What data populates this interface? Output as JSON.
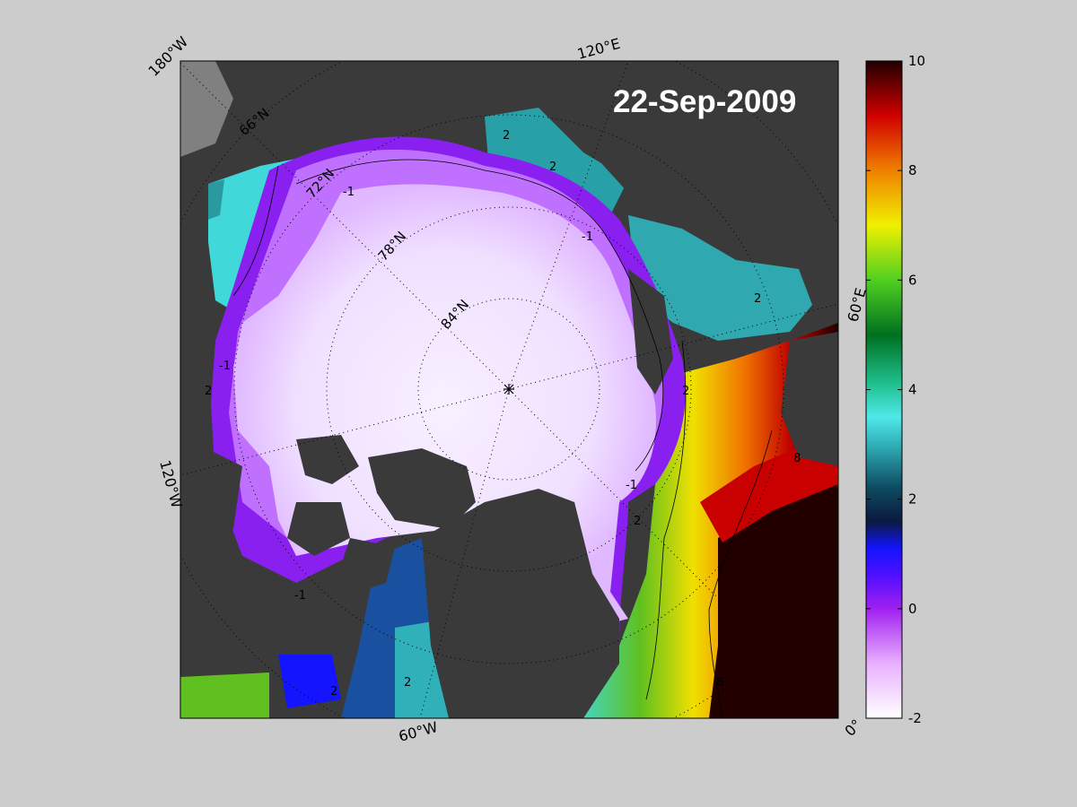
{
  "map": {
    "date_label": "22-Sep-2009",
    "longitude_labels": [
      "180°W",
      "120°E",
      "60°E",
      "0°",
      "60°W",
      "120°W"
    ],
    "latitude_labels": [
      "66°N",
      "72°N",
      "78°N",
      "84°N"
    ],
    "contour_labels": [
      "-1",
      "2",
      "8"
    ],
    "colors": {
      "land": "#3a3a3a",
      "background": "#cccccc",
      "ice": "#f3e6ff",
      "frame": "#000000"
    }
  },
  "colorbar": {
    "min": -2,
    "max": 10,
    "ticks": [
      "10",
      "8",
      "6",
      "4",
      "2",
      "0",
      "-2"
    ],
    "colormap": [
      {
        "v": -2,
        "c": "#ffffff"
      },
      {
        "v": -1,
        "c": "#e9b0ff"
      },
      {
        "v": 0,
        "c": "#a020f0"
      },
      {
        "v": 0.6,
        "c": "#5010ff"
      },
      {
        "v": 1.1,
        "c": "#1414ff"
      },
      {
        "v": 1.6,
        "c": "#0a1a40"
      },
      {
        "v": 2.2,
        "c": "#0d4a60"
      },
      {
        "v": 3,
        "c": "#30b0b8"
      },
      {
        "v": 3.5,
        "c": "#50e8e8"
      },
      {
        "v": 4.1,
        "c": "#20c090"
      },
      {
        "v": 5,
        "c": "#007020"
      },
      {
        "v": 6,
        "c": "#50d020"
      },
      {
        "v": 7,
        "c": "#f0f000"
      },
      {
        "v": 8,
        "c": "#f08000"
      },
      {
        "v": 9,
        "c": "#d00000"
      },
      {
        "v": 10,
        "c": "#200000"
      }
    ]
  }
}
